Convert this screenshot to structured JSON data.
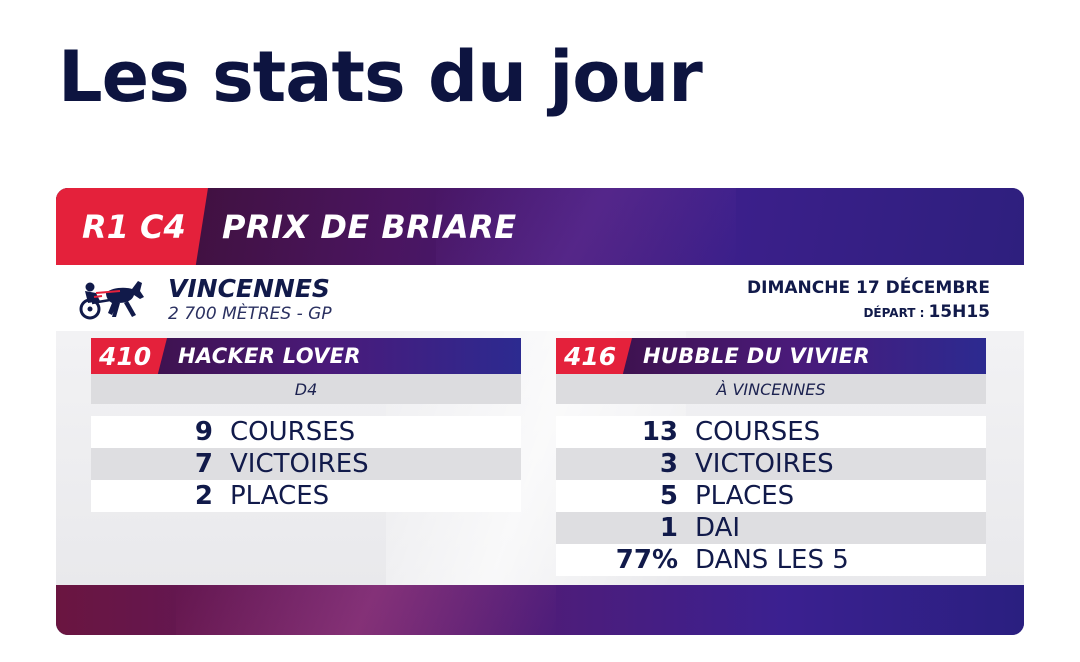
{
  "page": {
    "title": "Les stats du jour"
  },
  "race": {
    "code": "R1 C4",
    "name": "PRIX DE BRIARE",
    "venue": "VINCENNES",
    "distance": "2 700 MÈTRES - GP",
    "date": "DIMANCHE 17 DÉCEMBRE",
    "depart_label": "DÉPART :",
    "depart_time": "15H15",
    "icon": "trotting-horse-sulky-icon"
  },
  "horses": [
    {
      "number": "410",
      "name": "HACKER LOVER",
      "subtitle": "D4",
      "stats": [
        {
          "value": "9",
          "label": "COURSES"
        },
        {
          "value": "7",
          "label": "VICTOIRES"
        },
        {
          "value": "2",
          "label": "PLACES"
        }
      ]
    },
    {
      "number": "416",
      "name": "HUBBLE DU VIVIER",
      "subtitle": "À VINCENNES",
      "stats": [
        {
          "value": "13",
          "label": "COURSES"
        },
        {
          "value": "3",
          "label": "VICTOIRES"
        },
        {
          "value": "5",
          "label": "PLACES"
        },
        {
          "value": "1",
          "label": "DAI"
        },
        {
          "value": "77%",
          "label": "DANS LES 5"
        }
      ]
    }
  ],
  "colors": {
    "accent_red": "#e4213b",
    "navy": "#0d1440",
    "purple": "#4a1a7a"
  }
}
